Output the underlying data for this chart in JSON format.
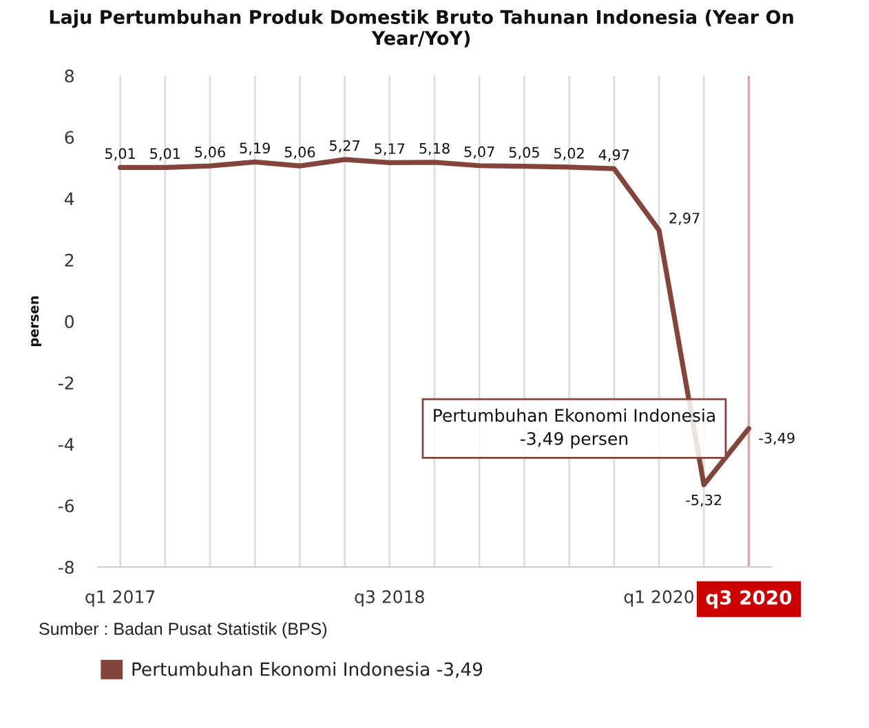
{
  "chart_data": {
    "type": "line",
    "title": "Laju Pertumbuhan Produk Domestik Bruto Tahunan Indonesia (Year On Year/YoY)",
    "ylabel": "persen",
    "categories": [
      "q1 2017",
      null,
      null,
      null,
      null,
      null,
      "q3 2018",
      null,
      null,
      null,
      null,
      null,
      "q1 2020",
      null,
      "q3 2020"
    ],
    "series": [
      {
        "name": "Pertumbuhan Ekonomi Indonesia -3,49",
        "color": "#83453b",
        "values": [
          5.01,
          5.01,
          5.06,
          5.19,
          5.06,
          5.27,
          5.17,
          5.18,
          5.07,
          5.05,
          5.02,
          4.97,
          2.97,
          -5.32,
          -3.49
        ],
        "value_labels": [
          "5,01",
          "5,01",
          "5,06",
          "5,19",
          "5,06",
          "5,27",
          "5,17",
          "5,18",
          "5,07",
          "5,05",
          "5,02",
          "4,97",
          "2,97",
          "-5,32",
          "-3,49"
        ]
      }
    ],
    "ylim": [
      -8,
      8
    ],
    "yticks": [
      -8,
      -6,
      -4,
      -2,
      0,
      2,
      4,
      6,
      8
    ],
    "grid": "x",
    "legend": "bottom",
    "ref_lines": [
      {
        "axis": "x",
        "value": "q3 2020",
        "color": "#cc0000"
      }
    ],
    "annotations": [
      "Sumber : Badan Pusat Statistik (BPS)",
      {
        "text": "Pertumbuhan Ekonomi Indonesia\n-3,49 persen",
        "x": "q3 2020",
        "y": -3.49
      }
    ]
  }
}
